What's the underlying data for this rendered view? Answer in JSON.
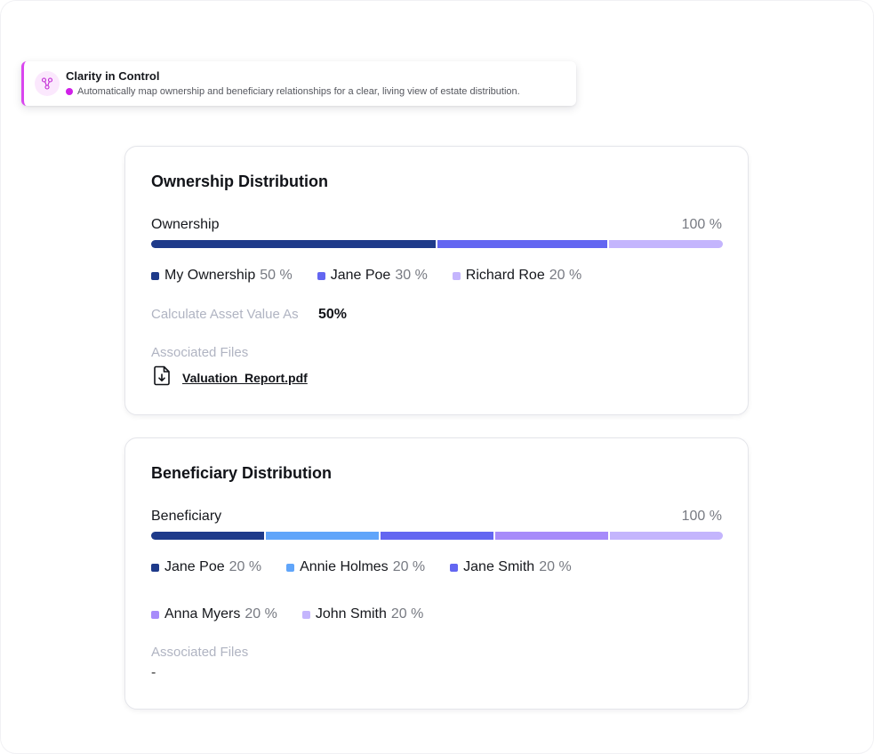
{
  "callout": {
    "title": "Clarity in Control",
    "subtitle": "Automatically map ownership and beneficiary relationships for a clear, living view of estate distribution.",
    "accent_color": "#d946ef",
    "icon": "network-icon"
  },
  "ownership": {
    "title": "Ownership Distribution",
    "bar_label": "Ownership",
    "total": "100 %",
    "segments": [
      {
        "name": "My Ownership",
        "pct_label": "50 %",
        "value": 50,
        "color": "#1e3a8a"
      },
      {
        "name": "Jane Poe",
        "pct_label": "30 %",
        "value": 30,
        "color": "#6366f1"
      },
      {
        "name": "Richard Roe",
        "pct_label": "20 %",
        "value": 20,
        "color": "#c4b5fd"
      }
    ],
    "calc_label": "Calculate Asset Value As",
    "calc_value": "50%",
    "files_label": "Associated Files",
    "file_name": "Valuation_Report.pdf"
  },
  "beneficiary": {
    "title": "Beneficiary Distribution",
    "bar_label": "Beneficiary",
    "total": "100 %",
    "segments": [
      {
        "name": "Jane Poe",
        "pct_label": "20 %",
        "value": 20,
        "color": "#1e3a8a"
      },
      {
        "name": "Annie Holmes",
        "pct_label": "20 %",
        "value": 20,
        "color": "#60a5fa"
      },
      {
        "name": "Jane Smith",
        "pct_label": "20 %",
        "value": 20,
        "color": "#6366f1"
      },
      {
        "name": "Anna Myers",
        "pct_label": "20 %",
        "value": 20,
        "color": "#a78bfa"
      },
      {
        "name": "John Smith",
        "pct_label": "20 %",
        "value": 20,
        "color": "#c4b5fd"
      }
    ],
    "files_label": "Associated Files",
    "files_value": "-"
  }
}
